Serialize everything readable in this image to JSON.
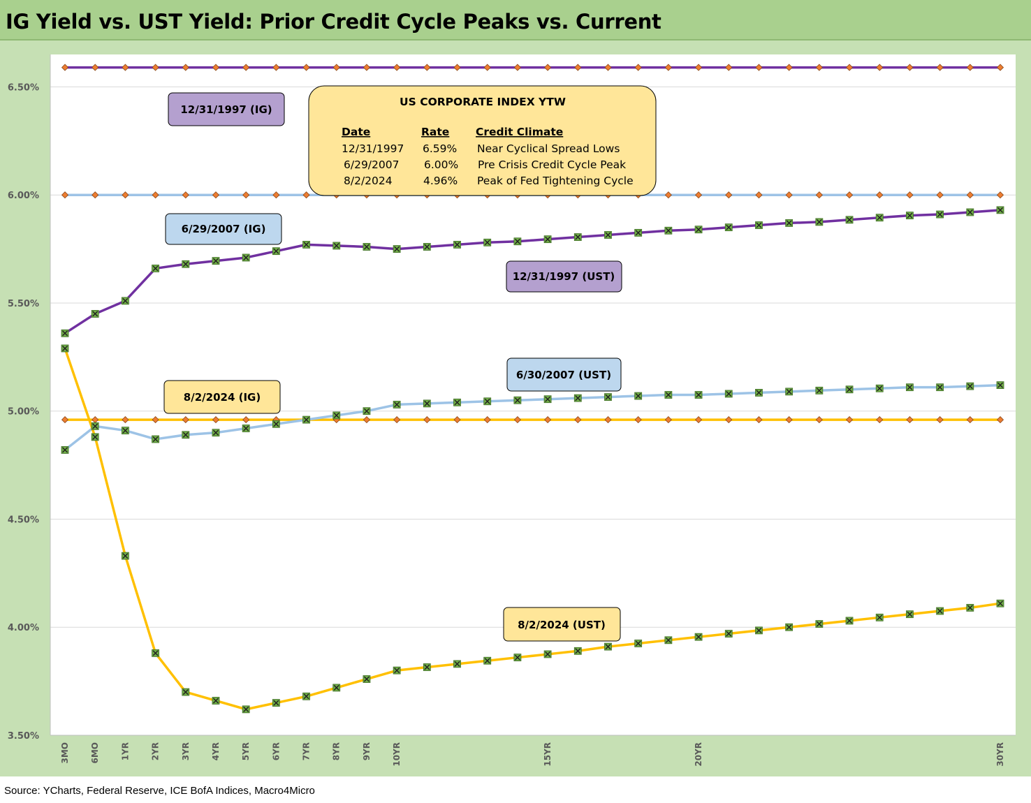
{
  "title": "IG Yield vs. UST Yield: Prior Credit Cycle Peaks vs. Current",
  "source": "Source: YCharts, Federal Reserve, ICE BofA Indices, Macro4Micro",
  "colors": {
    "title_bg": "#a9d08e",
    "frame_bg": "#c6e0b4",
    "purple": "#7030a0",
    "light_blue": "#9dc3e6",
    "gold": "#ffc000",
    "marker_green": "#70ad47",
    "marker_orange": "#ed7d31",
    "label_purple": "#b4a0cf",
    "label_blue": "#bdd7ee",
    "label_gold": "#ffe699",
    "table_bg": "#ffe699"
  },
  "chart_data": {
    "type": "line",
    "x_tick_labels": [
      "3MO",
      "6MO",
      "1YR",
      "2YR",
      "3YR",
      "4YR",
      "5YR",
      "6YR",
      "7YR",
      "8YR",
      "9YR",
      "10YR",
      "15YR",
      "20YR",
      "30YR"
    ],
    "x_tick_positions": [
      0,
      1,
      2,
      3,
      4,
      5,
      6,
      7,
      8,
      9,
      10,
      11,
      16,
      21,
      31
    ],
    "x_point_count": 32,
    "y_ticks": [
      3.5,
      4.0,
      4.5,
      5.0,
      5.5,
      6.0,
      6.5
    ],
    "y_tick_labels": [
      "3.50%",
      "4.00%",
      "4.50%",
      "5.00%",
      "5.50%",
      "6.00%",
      "6.50%"
    ],
    "ylim": [
      3.5,
      6.65
    ],
    "grid": "horizontal",
    "series": [
      {
        "name": "12/31/1997 (IG)",
        "color_key": "purple",
        "marker": "diamond",
        "values": [
          6.59,
          6.59,
          6.59,
          6.59,
          6.59,
          6.59,
          6.59,
          6.59,
          6.59,
          6.59,
          6.59,
          6.59,
          6.59,
          6.59,
          6.59,
          6.59,
          6.59,
          6.59,
          6.59,
          6.59,
          6.59,
          6.59,
          6.59,
          6.59,
          6.59,
          6.59,
          6.59,
          6.59,
          6.59,
          6.59,
          6.59,
          6.59
        ]
      },
      {
        "name": "6/29/2007 (IG)",
        "color_key": "light_blue",
        "marker": "diamond",
        "values": [
          6.0,
          6.0,
          6.0,
          6.0,
          6.0,
          6.0,
          6.0,
          6.0,
          6.0,
          6.0,
          6.0,
          6.0,
          6.0,
          6.0,
          6.0,
          6.0,
          6.0,
          6.0,
          6.0,
          6.0,
          6.0,
          6.0,
          6.0,
          6.0,
          6.0,
          6.0,
          6.0,
          6.0,
          6.0,
          6.0,
          6.0,
          6.0
        ]
      },
      {
        "name": "8/2/2024 (IG)",
        "color_key": "gold",
        "marker": "diamond",
        "values": [
          4.96,
          4.96,
          4.96,
          4.96,
          4.96,
          4.96,
          4.96,
          4.96,
          4.96,
          4.96,
          4.96,
          4.96,
          4.96,
          4.96,
          4.96,
          4.96,
          4.96,
          4.96,
          4.96,
          4.96,
          4.96,
          4.96,
          4.96,
          4.96,
          4.96,
          4.96,
          4.96,
          4.96,
          4.96,
          4.96,
          4.96,
          4.96
        ]
      },
      {
        "name": "12/31/1997 (UST)",
        "color_key": "purple",
        "marker": "x",
        "values": [
          5.36,
          5.45,
          5.51,
          5.66,
          5.68,
          5.695,
          5.71,
          5.74,
          5.77,
          5.765,
          5.76,
          5.75,
          5.76,
          5.77,
          5.78,
          5.785,
          5.795,
          5.805,
          5.815,
          5.825,
          5.835,
          5.84,
          5.85,
          5.86,
          5.87,
          5.875,
          5.885,
          5.895,
          5.905,
          5.91,
          5.92,
          5.93
        ]
      },
      {
        "name": "6/30/2007 (UST)",
        "color_key": "light_blue",
        "marker": "x",
        "values": [
          4.82,
          4.93,
          4.91,
          4.87,
          4.89,
          4.9,
          4.92,
          4.94,
          4.96,
          4.98,
          5.0,
          5.03,
          5.035,
          5.04,
          5.045,
          5.05,
          5.055,
          5.06,
          5.065,
          5.07,
          5.075,
          5.075,
          5.08,
          5.085,
          5.09,
          5.095,
          5.1,
          5.105,
          5.11,
          5.11,
          5.115,
          5.12
        ]
      },
      {
        "name": "8/2/2024 (UST)",
        "color_key": "gold",
        "marker": "x",
        "values": [
          5.29,
          4.88,
          4.33,
          3.88,
          3.7,
          3.66,
          3.62,
          3.65,
          3.68,
          3.72,
          3.76,
          3.8,
          3.815,
          3.83,
          3.845,
          3.86,
          3.875,
          3.89,
          3.91,
          3.925,
          3.94,
          3.955,
          3.97,
          3.985,
          4.0,
          4.015,
          4.03,
          4.045,
          4.06,
          4.075,
          4.09,
          4.11
        ]
      }
    ],
    "annotations": [
      {
        "text": "12/31/1997 (IG)",
        "color_key": "label_purple"
      },
      {
        "text": "6/29/2007 (IG)",
        "color_key": "label_blue"
      },
      {
        "text": "12/31/1997 (UST)",
        "color_key": "label_purple"
      },
      {
        "text": "6/30/2007 (UST)",
        "color_key": "label_blue"
      },
      {
        "text": "8/2/2024 (IG)",
        "color_key": "label_gold"
      },
      {
        "text": "8/2/2024 (UST)",
        "color_key": "label_gold"
      }
    ],
    "info_table": {
      "title": "US CORPORATE INDEX YTW",
      "headers": [
        "Date",
        "Rate",
        "Credit Climate"
      ],
      "rows": [
        [
          "12/31/1997",
          "6.59%",
          "Near Cyclical Spread Lows"
        ],
        [
          "6/29/2007",
          "6.00%",
          "Pre Crisis Credit Cycle Peak"
        ],
        [
          "8/2/2024",
          "4.96%",
          "Peak of Fed Tightening Cycle"
        ]
      ]
    }
  }
}
